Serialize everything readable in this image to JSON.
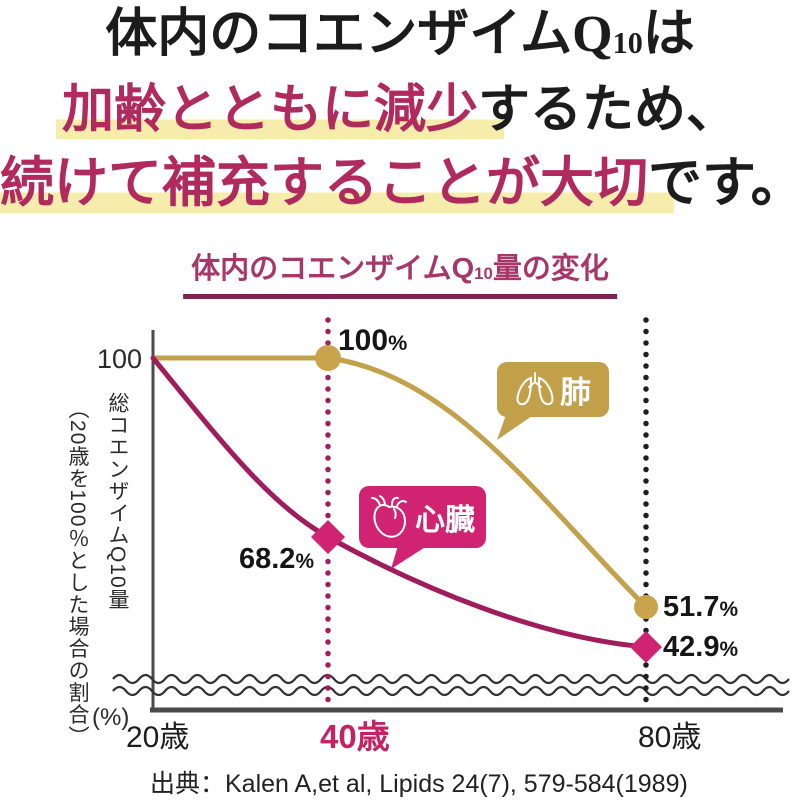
{
  "headline": {
    "line1_pre": "体内のコエンザイムQ",
    "line1_sub": "10",
    "line1_post": "は",
    "line2_emphasis": "加齢とともに減少",
    "line2_rest": "するため、",
    "line3_emphasis": "続けて補充することが大切",
    "line3_rest": "です。",
    "emphasis_color": "#b12a5e",
    "highlight_color": "#f6edad"
  },
  "chart": {
    "title_pre": "体内のコエンザイムQ",
    "title_sub": "10",
    "title_post": "量の変化",
    "title_color": "#a73768",
    "y_tick": "100",
    "y_label_main": "総コエンザイムQ10量",
    "y_label_sub": "（20歳を100％とした場合の割合）",
    "y_unit": "(%)",
    "x_ticks": [
      "20歳",
      "40歳",
      "80歳"
    ],
    "source": "出典：Kalen A,et al, Lipids 24(7), 579-584(1989)"
  },
  "callouts": {
    "lung_label": "肺",
    "heart_label": "心臓",
    "lung_color": "#c2a049",
    "heart_color": "#d02472"
  },
  "annotations": {
    "lung_40": {
      "value": "100",
      "unit": "%"
    },
    "heart_40": {
      "value": "68.2",
      "unit": "%"
    },
    "lung_80": {
      "value": "51.7",
      "unit": "%"
    },
    "heart_80": {
      "value": "42.9",
      "unit": "%"
    }
  },
  "chart_data": {
    "type": "line",
    "title": "体内のコエンザイムQ10量の変化",
    "x": [
      20,
      40,
      80
    ],
    "x_tick_labels": [
      "20歳",
      "40歳",
      "80歳"
    ],
    "ylabel": "総コエンザイムQ10量（20歳を100％とした場合の割合）(%)",
    "y_tick_labels": [
      "100"
    ],
    "axis_break": true,
    "grid": false,
    "legend_position": "inline-callouts",
    "series": [
      {
        "name": "肺",
        "color": "#c3a04b",
        "marker": "circle",
        "values": [
          100,
          100,
          51.7
        ]
      },
      {
        "name": "心臓",
        "color": "#a01d5d",
        "marker": "diamond",
        "values": [
          100,
          68.2,
          42.9
        ]
      }
    ],
    "point_labels": [
      "100%",
      "68.2%",
      "51.7%",
      "42.9%"
    ],
    "source": "出典：Kalen A,et al, Lipids 24(7), 579-584(1989)"
  }
}
